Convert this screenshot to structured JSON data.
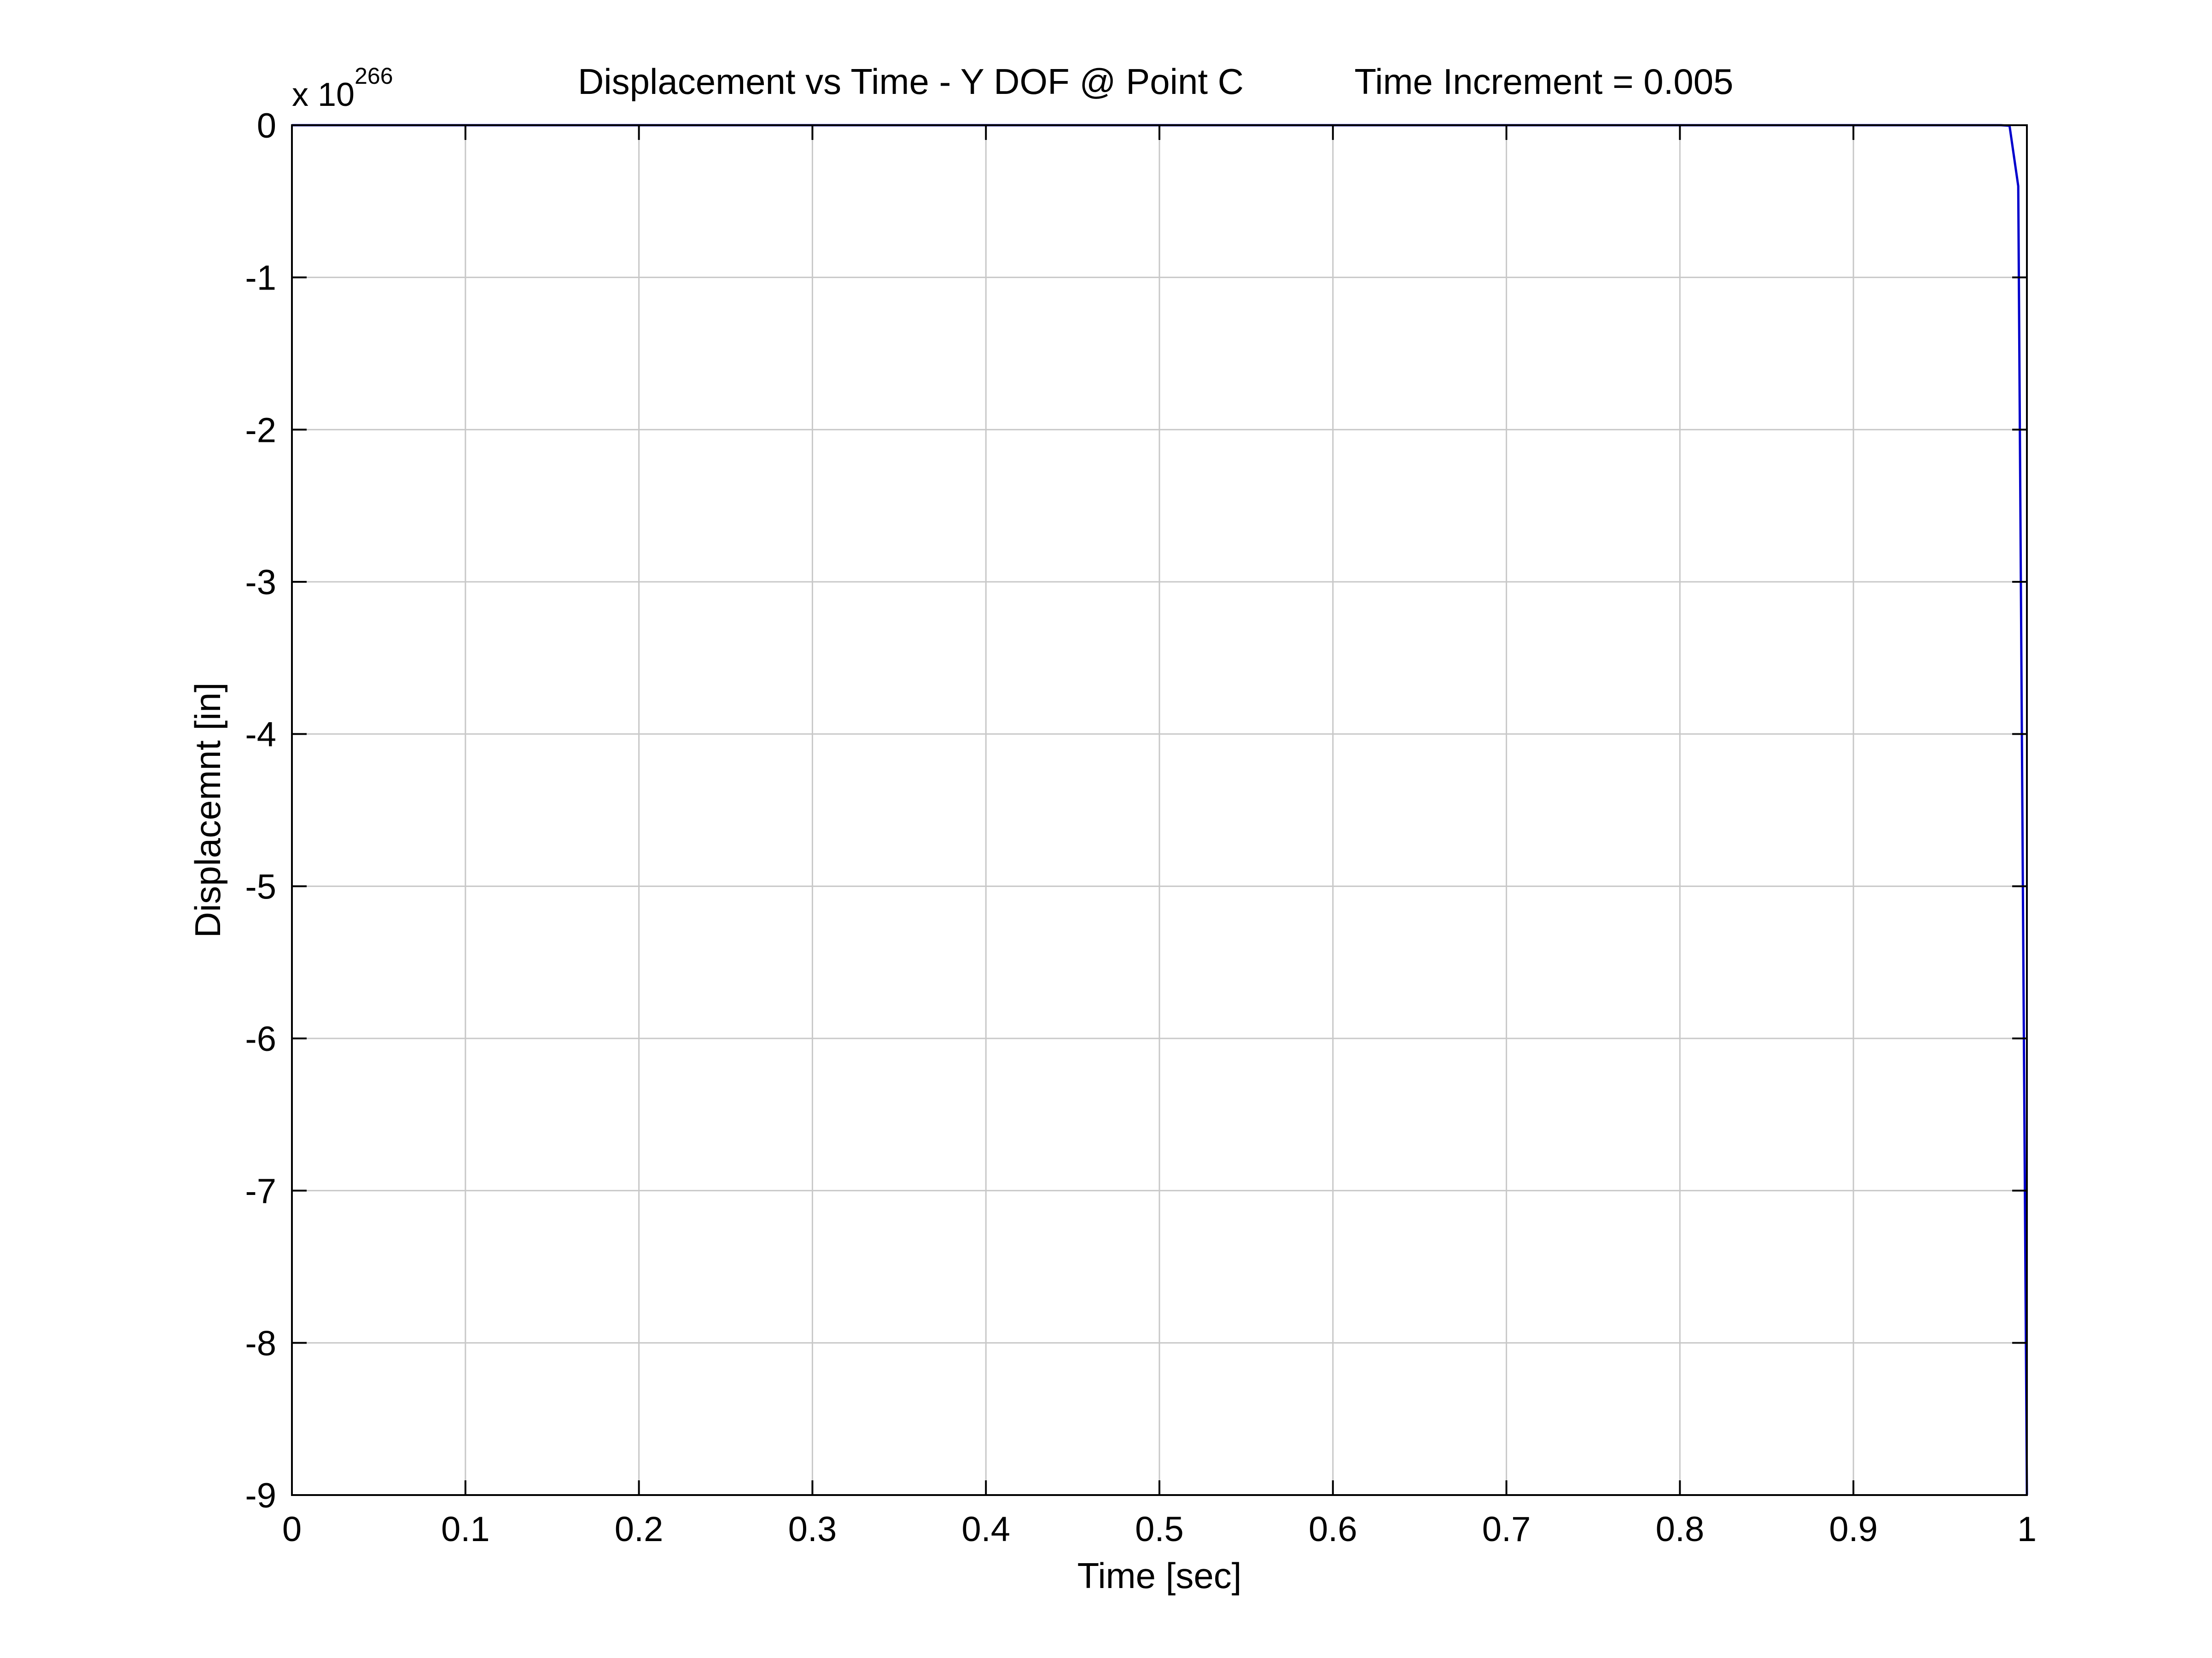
{
  "chart_data": {
    "type": "line",
    "title": "Displacement vs Time - Y DOF @ Point C",
    "subtitle": "Time Increment = 0.005",
    "xlabel": "Time [sec]",
    "ylabel": "Displacemnt [in]",
    "xlim": [
      0,
      1
    ],
    "ylim": [
      -9,
      0
    ],
    "y_multiplier": {
      "base": "x 10",
      "exponent": "266"
    },
    "x_ticks": [
      {
        "value": 0,
        "label": "0"
      },
      {
        "value": 0.1,
        "label": "0.1"
      },
      {
        "value": 0.2,
        "label": "0.2"
      },
      {
        "value": 0.3,
        "label": "0.3"
      },
      {
        "value": 0.4,
        "label": "0.4"
      },
      {
        "value": 0.5,
        "label": "0.5"
      },
      {
        "value": 0.6,
        "label": "0.6"
      },
      {
        "value": 0.7,
        "label": "0.7"
      },
      {
        "value": 0.8,
        "label": "0.8"
      },
      {
        "value": 0.9,
        "label": "0.9"
      },
      {
        "value": 1,
        "label": "1"
      }
    ],
    "y_ticks": [
      {
        "value": 0,
        "label": "0"
      },
      {
        "value": -1,
        "label": "-1"
      },
      {
        "value": -2,
        "label": "-2"
      },
      {
        "value": -3,
        "label": "-3"
      },
      {
        "value": -4,
        "label": "-4"
      },
      {
        "value": -5,
        "label": "-5"
      },
      {
        "value": -6,
        "label": "-6"
      },
      {
        "value": -7,
        "label": "-7"
      },
      {
        "value": -8,
        "label": "-8"
      },
      {
        "value": -9,
        "label": "-9"
      }
    ],
    "grid": true,
    "series": [
      {
        "color": "#0000cc",
        "x": [
          0,
          0.1,
          0.2,
          0.3,
          0.4,
          0.5,
          0.6,
          0.7,
          0.8,
          0.9,
          0.98,
          0.985,
          0.99,
          0.995,
          1.0
        ],
        "y": [
          0,
          0,
          0,
          0,
          0,
          0,
          0,
          0,
          0,
          0,
          0,
          0,
          -0.004,
          -0.4,
          -9
        ]
      }
    ]
  }
}
